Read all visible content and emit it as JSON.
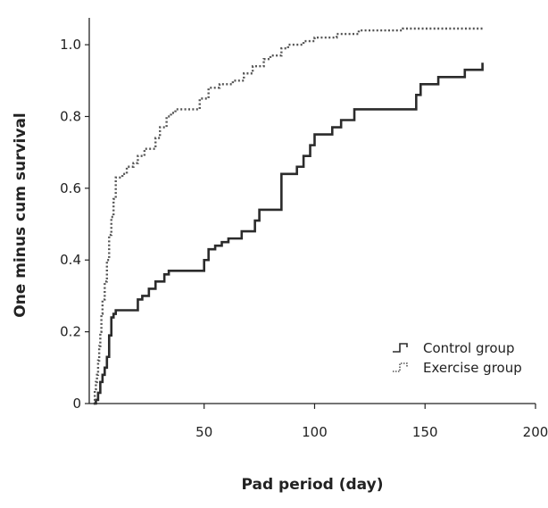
{
  "chart_data": {
    "type": "line",
    "title": "",
    "xlabel": "Pad period (day)",
    "ylabel": "One minus cum survival",
    "xlim": [
      -2,
      200
    ],
    "ylim": [
      0,
      1.05
    ],
    "x_ticks": [
      50,
      100,
      150,
      200
    ],
    "y_ticks": [
      0,
      0.2,
      0.4,
      0.6,
      0.8,
      1.0
    ],
    "x_tick_labels": [
      "50",
      "100",
      "150",
      "200"
    ],
    "y_tick_labels": [
      "0",
      "0.2",
      "0.4",
      "0.6",
      "0.8",
      "1.0"
    ],
    "step": true,
    "grid": false,
    "legend_position": "bottom-right",
    "series": [
      {
        "name": "Control group",
        "style": "solid",
        "color": "#2b2b2b",
        "x": [
          0,
          1,
          2,
          3,
          4,
          5,
          6,
          7,
          8,
          9,
          10,
          20,
          22,
          25,
          28,
          32,
          34,
          36,
          50,
          52,
          55,
          58,
          61,
          67,
          73,
          75,
          85,
          92,
          95,
          98,
          100,
          108,
          112,
          118,
          146,
          148,
          156,
          168,
          176
        ],
        "y": [
          0,
          0.01,
          0.03,
          0.06,
          0.08,
          0.1,
          0.13,
          0.19,
          0.24,
          0.25,
          0.26,
          0.29,
          0.3,
          0.32,
          0.34,
          0.36,
          0.37,
          0.37,
          0.4,
          0.43,
          0.44,
          0.45,
          0.46,
          0.48,
          0.51,
          0.54,
          0.64,
          0.66,
          0.69,
          0.72,
          0.75,
          0.77,
          0.79,
          0.82,
          0.86,
          0.89,
          0.91,
          0.93,
          0.95
        ]
      },
      {
        "name": "Exercise group",
        "style": "dotted",
        "color": "#555555",
        "x": [
          0,
          0.5,
          1,
          1.5,
          2,
          2.5,
          3,
          3.5,
          4,
          5,
          6,
          7,
          8,
          9,
          10,
          13,
          15,
          16,
          18,
          20,
          23,
          28,
          30,
          33,
          35,
          37,
          48,
          52,
          57,
          63,
          68,
          72,
          77,
          80,
          85,
          88,
          95,
          100,
          110,
          120,
          140,
          176
        ],
        "y": [
          0,
          0.04,
          0.06,
          0.08,
          0.12,
          0.16,
          0.2,
          0.25,
          0.29,
          0.34,
          0.4,
          0.47,
          0.52,
          0.57,
          0.63,
          0.64,
          0.66,
          0.66,
          0.67,
          0.69,
          0.71,
          0.74,
          0.77,
          0.8,
          0.81,
          0.82,
          0.85,
          0.88,
          0.89,
          0.9,
          0.92,
          0.94,
          0.96,
          0.97,
          0.99,
          1.0,
          1.01,
          1.02,
          1.03,
          1.04,
          1.045,
          1.05
        ]
      }
    ]
  }
}
